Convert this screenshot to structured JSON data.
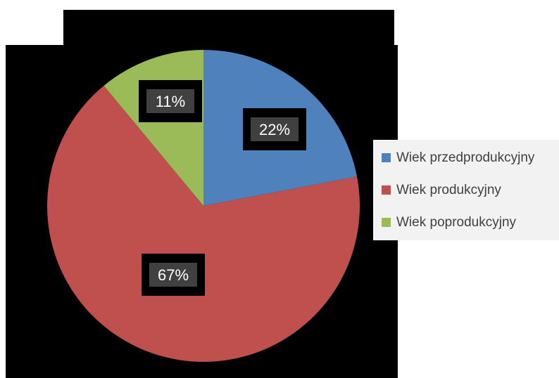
{
  "chart_data": {
    "type": "pie",
    "categories": [
      "Wiek przedprodukcyjny",
      "Wiek produkcyjny",
      "Wiek poprodukcyjny"
    ],
    "values": [
      22,
      67,
      11
    ],
    "labels": [
      "22%",
      "67%",
      "11%"
    ],
    "colors": [
      "#4f81bd",
      "#c0504d",
      "#9bbb59"
    ],
    "legend_position": "right",
    "start_angle_deg": 0,
    "direction": "clockwise"
  }
}
